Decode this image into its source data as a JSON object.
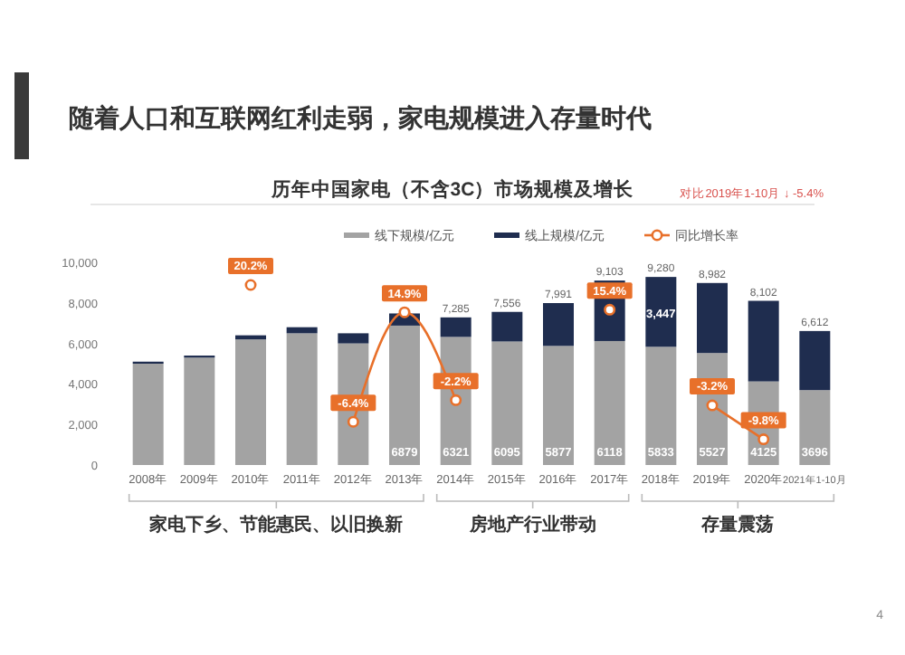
{
  "chart_data": {
    "type": "bar",
    "stacked": true,
    "subtitle": "随着人口和互联网红利走弱，家电规模进入存量时代",
    "title": "历年中国家电（不含3C）市场规模及增长",
    "categories": [
      "2008年",
      "2009年",
      "2010年",
      "2011年",
      "2012年",
      "2013年",
      "2014年",
      "2015年",
      "2016年",
      "2017年",
      "2018年",
      "2019年",
      "2020年",
      "2021年1-10月"
    ],
    "series": [
      {
        "name": "线下规模/亿元",
        "color": "#a3a3a3",
        "values": [
          5000,
          5300,
          6200,
          6500,
          6000,
          6879,
          6321,
          6095,
          5877,
          6118,
          5833,
          5527,
          4125,
          3696
        ],
        "value_labels": [
          null,
          null,
          null,
          null,
          null,
          "6879",
          "6321",
          "6095",
          "5877",
          "6118",
          "5833",
          "5527",
          "4125",
          "3696"
        ]
      },
      {
        "name": "线上规模/亿元",
        "color": "#1f2d4f",
        "values": [
          100,
          100,
          200,
          300,
          500,
          600,
          964,
          1461,
          2114,
          2985,
          3447,
          3455,
          3977,
          2916
        ],
        "value_labels": [
          null,
          null,
          null,
          null,
          null,
          null,
          null,
          null,
          null,
          null,
          "3,447",
          null,
          null,
          null
        ]
      },
      {
        "name": "同比增长率",
        "type": "line",
        "axis": "y2",
        "color": "#e8702a",
        "values": [
          null,
          null,
          20.2,
          null,
          -6.4,
          14.9,
          -2.2,
          null,
          null,
          15.4,
          null,
          -3.2,
          -9.8,
          null
        ],
        "value_labels": [
          null,
          null,
          "20.2%",
          null,
          "-6.4%",
          "14.9%",
          "-2.2%",
          null,
          null,
          "15.4%",
          null,
          "-3.2%",
          "-9.8%",
          null
        ]
      }
    ],
    "totals": [
      null,
      null,
      null,
      null,
      null,
      null,
      "7,285",
      "7,556",
      "7,991",
      "9,103",
      "9,280",
      "8,982",
      "8,102",
      "6,612"
    ],
    "ylim": [
      0,
      10000
    ],
    "yticks": [
      {
        "value": 0,
        "label": "0"
      },
      {
        "value": 2000,
        "label": "2,000"
      },
      {
        "value": 4000,
        "label": "4,000"
      },
      {
        "value": 6000,
        "label": "6,000"
      },
      {
        "value": 8000,
        "label": "8,000"
      },
      {
        "value": 10000,
        "label": "10,000"
      }
    ],
    "y2lim": [
      -14.8,
      24.6
    ],
    "marker": "circle",
    "legend": "top",
    "grid": false,
    "annotations": [
      "对比2019年1-10月 ↓ -5.4%",
      "家电下乡、节能惠民、以旧换新",
      "房地产行业带动",
      "存量震荡",
      "4"
    ]
  }
}
